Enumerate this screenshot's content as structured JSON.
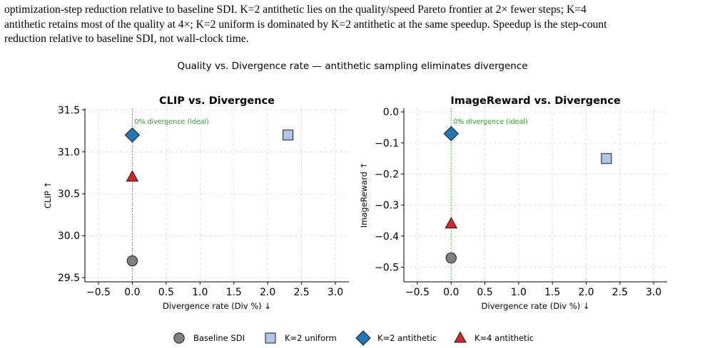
{
  "caption": {
    "line1": "optimization-step reduction relative to baseline SDI. K=2 antithetic lies on the quality/speed Pareto frontier at 2× fewer steps; K=4",
    "line2": "antithetic retains most of the quality at 4×; K=2 uniform is dominated by K=2 antithetic at the same speedup. Speedup is the step-count",
    "line3": "reduction relative to baseline SDI, not wall-clock time."
  },
  "figure": {
    "suptitle": "Quality vs. Divergence rate — antithetic sampling eliminates divergence"
  },
  "legend": [
    {
      "label": "Baseline SDI",
      "marker": "circle",
      "color": "#808080"
    },
    {
      "label": "K=2 uniform",
      "marker": "square",
      "color": "#aec7e8"
    },
    {
      "label": "K=2 antithetic",
      "marker": "diamond",
      "color": "#1f77b4"
    },
    {
      "label": "K=4 antithetic",
      "marker": "triangle",
      "color": "#d62728"
    }
  ],
  "chart_data": [
    {
      "type": "scatter",
      "title": "CLIP vs. Divergence",
      "xlabel": "Divergence rate (Div %) ↓",
      "ylabel": "CLIP ↑",
      "xlim": [
        -0.7,
        3.2
      ],
      "ylim": [
        29.45,
        31.52
      ],
      "xticks": [
        -0.5,
        0.0,
        0.5,
        1.0,
        1.5,
        2.0,
        2.5,
        3.0
      ],
      "xtick_labels": [
        "−0.5",
        "0.0",
        "0.5",
        "1.0",
        "1.5",
        "2.0",
        "2.5",
        "3.0"
      ],
      "yticks": [
        29.5,
        30.0,
        30.5,
        31.0,
        31.5
      ],
      "ytick_labels": [
        "29.5",
        "30.0",
        "30.5",
        "31.0",
        "31.5"
      ],
      "grid": true,
      "reference_line": {
        "x": 0.0,
        "label": "0% divergence (ideal)",
        "color": "#2ca02c"
      },
      "series": [
        {
          "name": "Baseline SDI",
          "marker": "circle",
          "color": "#808080",
          "x": 0.0,
          "y": 29.7
        },
        {
          "name": "K=2 uniform",
          "marker": "square",
          "color": "#aec7e8",
          "x": 2.3,
          "y": 31.2
        },
        {
          "name": "K=2 antithetic",
          "marker": "diamond",
          "color": "#1f77b4",
          "x": 0.0,
          "y": 31.2
        },
        {
          "name": "K=4 antithetic",
          "marker": "triangle",
          "color": "#d62728",
          "x": 0.0,
          "y": 30.7
        }
      ]
    },
    {
      "type": "scatter",
      "title": "ImageReward vs. Divergence",
      "xlabel": "Divergence rate (Div %) ↓",
      "ylabel": "ImageReward ↑",
      "xlim": [
        -0.7,
        3.2
      ],
      "ylim": [
        -0.547,
        0.012
      ],
      "xticks": [
        -0.5,
        0.0,
        0.5,
        1.0,
        1.5,
        2.0,
        2.5,
        3.0
      ],
      "xtick_labels": [
        "−0.5",
        "0.0",
        "0.5",
        "1.0",
        "1.5",
        "2.0",
        "2.5",
        "3.0"
      ],
      "yticks": [
        0.0,
        -0.1,
        -0.2,
        -0.3,
        -0.4,
        -0.5
      ],
      "ytick_labels": [
        "0.0",
        "−0.1",
        "−0.2",
        "−0.3",
        "−0.4",
        "−0.5"
      ],
      "grid": true,
      "reference_line": {
        "x": 0.0,
        "label": "0% divergence (ideal)",
        "color": "#2ca02c"
      },
      "series": [
        {
          "name": "Baseline SDI",
          "marker": "circle",
          "color": "#808080",
          "x": 0.0,
          "y": -0.47
        },
        {
          "name": "K=2 uniform",
          "marker": "square",
          "color": "#aec7e8",
          "x": 2.3,
          "y": -0.15
        },
        {
          "name": "K=2 antithetic",
          "marker": "diamond",
          "color": "#1f77b4",
          "x": 0.0,
          "y": -0.07
        },
        {
          "name": "K=4 antithetic",
          "marker": "triangle",
          "color": "#d62728",
          "x": 0.0,
          "y": -0.36
        }
      ]
    }
  ]
}
